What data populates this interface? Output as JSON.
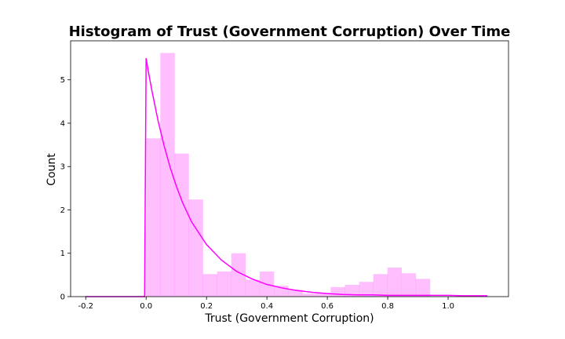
{
  "chart_data": {
    "type": "bar",
    "title": "Histogram of Trust (Government Corruption) Over Time",
    "xlabel": "Trust (Government Corruption)",
    "ylabel": "Count",
    "xlim": [
      -0.25,
      1.2
    ],
    "ylim": [
      0,
      5.9
    ],
    "xticks": [
      -0.2,
      0.0,
      0.2,
      0.4,
      0.6,
      0.8,
      1.0
    ],
    "yticks": [
      0,
      1,
      2,
      3,
      4,
      5
    ],
    "bar_color": "#ff00ff",
    "bar_opacity": 0.25,
    "line_color": "#ff00ff",
    "bins": [
      {
        "x0": 0.0,
        "x1": 0.047,
        "value": 3.65
      },
      {
        "x0": 0.047,
        "x1": 0.094,
        "value": 5.62
      },
      {
        "x0": 0.094,
        "x1": 0.141,
        "value": 3.3
      },
      {
        "x0": 0.141,
        "x1": 0.188,
        "value": 2.24
      },
      {
        "x0": 0.188,
        "x1": 0.235,
        "value": 0.52
      },
      {
        "x0": 0.235,
        "x1": 0.282,
        "value": 0.58
      },
      {
        "x0": 0.282,
        "x1": 0.329,
        "value": 1.0
      },
      {
        "x0": 0.329,
        "x1": 0.376,
        "value": 0.39
      },
      {
        "x0": 0.376,
        "x1": 0.423,
        "value": 0.58
      },
      {
        "x0": 0.423,
        "x1": 0.47,
        "value": 0.25
      },
      {
        "x0": 0.47,
        "x1": 0.517,
        "value": 0.16
      },
      {
        "x0": 0.517,
        "x1": 0.564,
        "value": 0.07
      },
      {
        "x0": 0.564,
        "x1": 0.611,
        "value": 0.09
      },
      {
        "x0": 0.611,
        "x1": 0.658,
        "value": 0.22
      },
      {
        "x0": 0.658,
        "x1": 0.705,
        "value": 0.27
      },
      {
        "x0": 0.705,
        "x1": 0.752,
        "value": 0.34
      },
      {
        "x0": 0.752,
        "x1": 0.799,
        "value": 0.52
      },
      {
        "x0": 0.799,
        "x1": 0.846,
        "value": 0.67
      },
      {
        "x0": 0.846,
        "x1": 0.893,
        "value": 0.54
      },
      {
        "x0": 0.893,
        "x1": 0.94,
        "value": 0.41
      }
    ],
    "curve": {
      "type": "exponential-fit",
      "x": [
        -0.2,
        -0.15,
        -0.1,
        -0.05,
        -0.005,
        0.0,
        0.01,
        0.02,
        0.04,
        0.06,
        0.08,
        0.1,
        0.12,
        0.15,
        0.2,
        0.25,
        0.3,
        0.35,
        0.4,
        0.45,
        0.5,
        0.55,
        0.6,
        0.65,
        0.7,
        0.75,
        0.8,
        0.85,
        0.9,
        0.95,
        1.0,
        1.05,
        1.13
      ],
      "y": [
        0.0,
        0.0,
        0.0,
        0.0,
        0.0,
        5.5,
        5.09,
        4.72,
        4.04,
        3.47,
        2.97,
        2.55,
        2.18,
        1.73,
        1.2,
        0.84,
        0.58,
        0.41,
        0.28,
        0.2,
        0.14,
        0.1,
        0.07,
        0.05,
        0.04,
        0.04,
        0.03,
        0.03,
        0.03,
        0.03,
        0.03,
        0.02,
        0.02
      ]
    }
  }
}
